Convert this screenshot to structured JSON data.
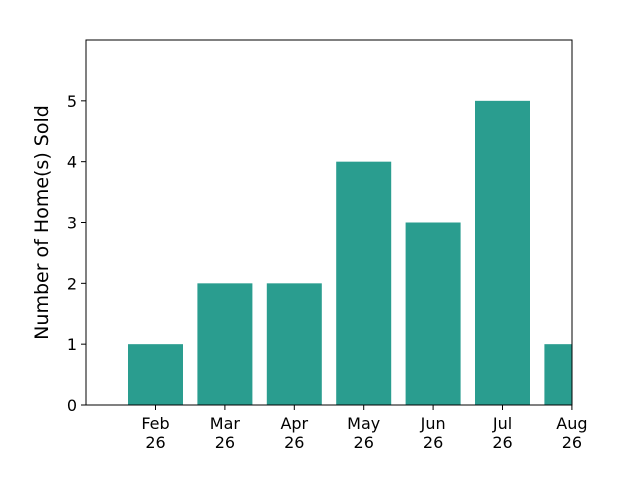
{
  "chart_data": {
    "type": "bar",
    "categories": [
      [
        "Feb",
        "26"
      ],
      [
        "Mar",
        "26"
      ],
      [
        "Apr",
        "26"
      ],
      [
        "May",
        "26"
      ],
      [
        "Jun",
        "26"
      ],
      [
        "Jul",
        "26"
      ],
      [
        "Aug",
        "26"
      ]
    ],
    "values": [
      1,
      2,
      2,
      4,
      3,
      5,
      1
    ],
    "xlabel": "",
    "ylabel": "Number of Home(s) Sold",
    "ylim": [
      0,
      6
    ],
    "yticks": [
      "0",
      "1",
      "2",
      "3",
      "4",
      "5"
    ],
    "bar_color": "#2a9d8f",
    "grid": false,
    "last_bar_clipped_at_right_edge": true
  }
}
